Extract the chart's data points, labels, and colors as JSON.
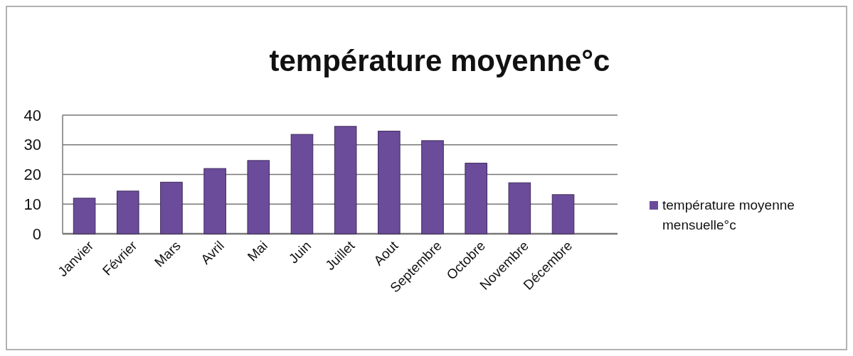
{
  "chart_data": {
    "type": "bar",
    "title": "température moyenne°c",
    "categories": [
      "Janvier",
      "Février",
      "Mars",
      "Avril",
      "Mai",
      "Juin",
      "Juillet",
      "Aout",
      "Septembre",
      "Octobre",
      "Novembre",
      "Décembre"
    ],
    "series": [
      {
        "name": "température moyenne mensuelle°c",
        "color": "#6b4c9a",
        "values": [
          12,
          14.4,
          17.4,
          22,
          24.7,
          33.5,
          36.2,
          34.6,
          31.4,
          23.8,
          17.2,
          13.2
        ]
      }
    ],
    "ylim": [
      0,
      40
    ],
    "yticks": [
      0,
      10,
      20,
      30,
      40
    ],
    "grid": "y",
    "legend": "right"
  }
}
